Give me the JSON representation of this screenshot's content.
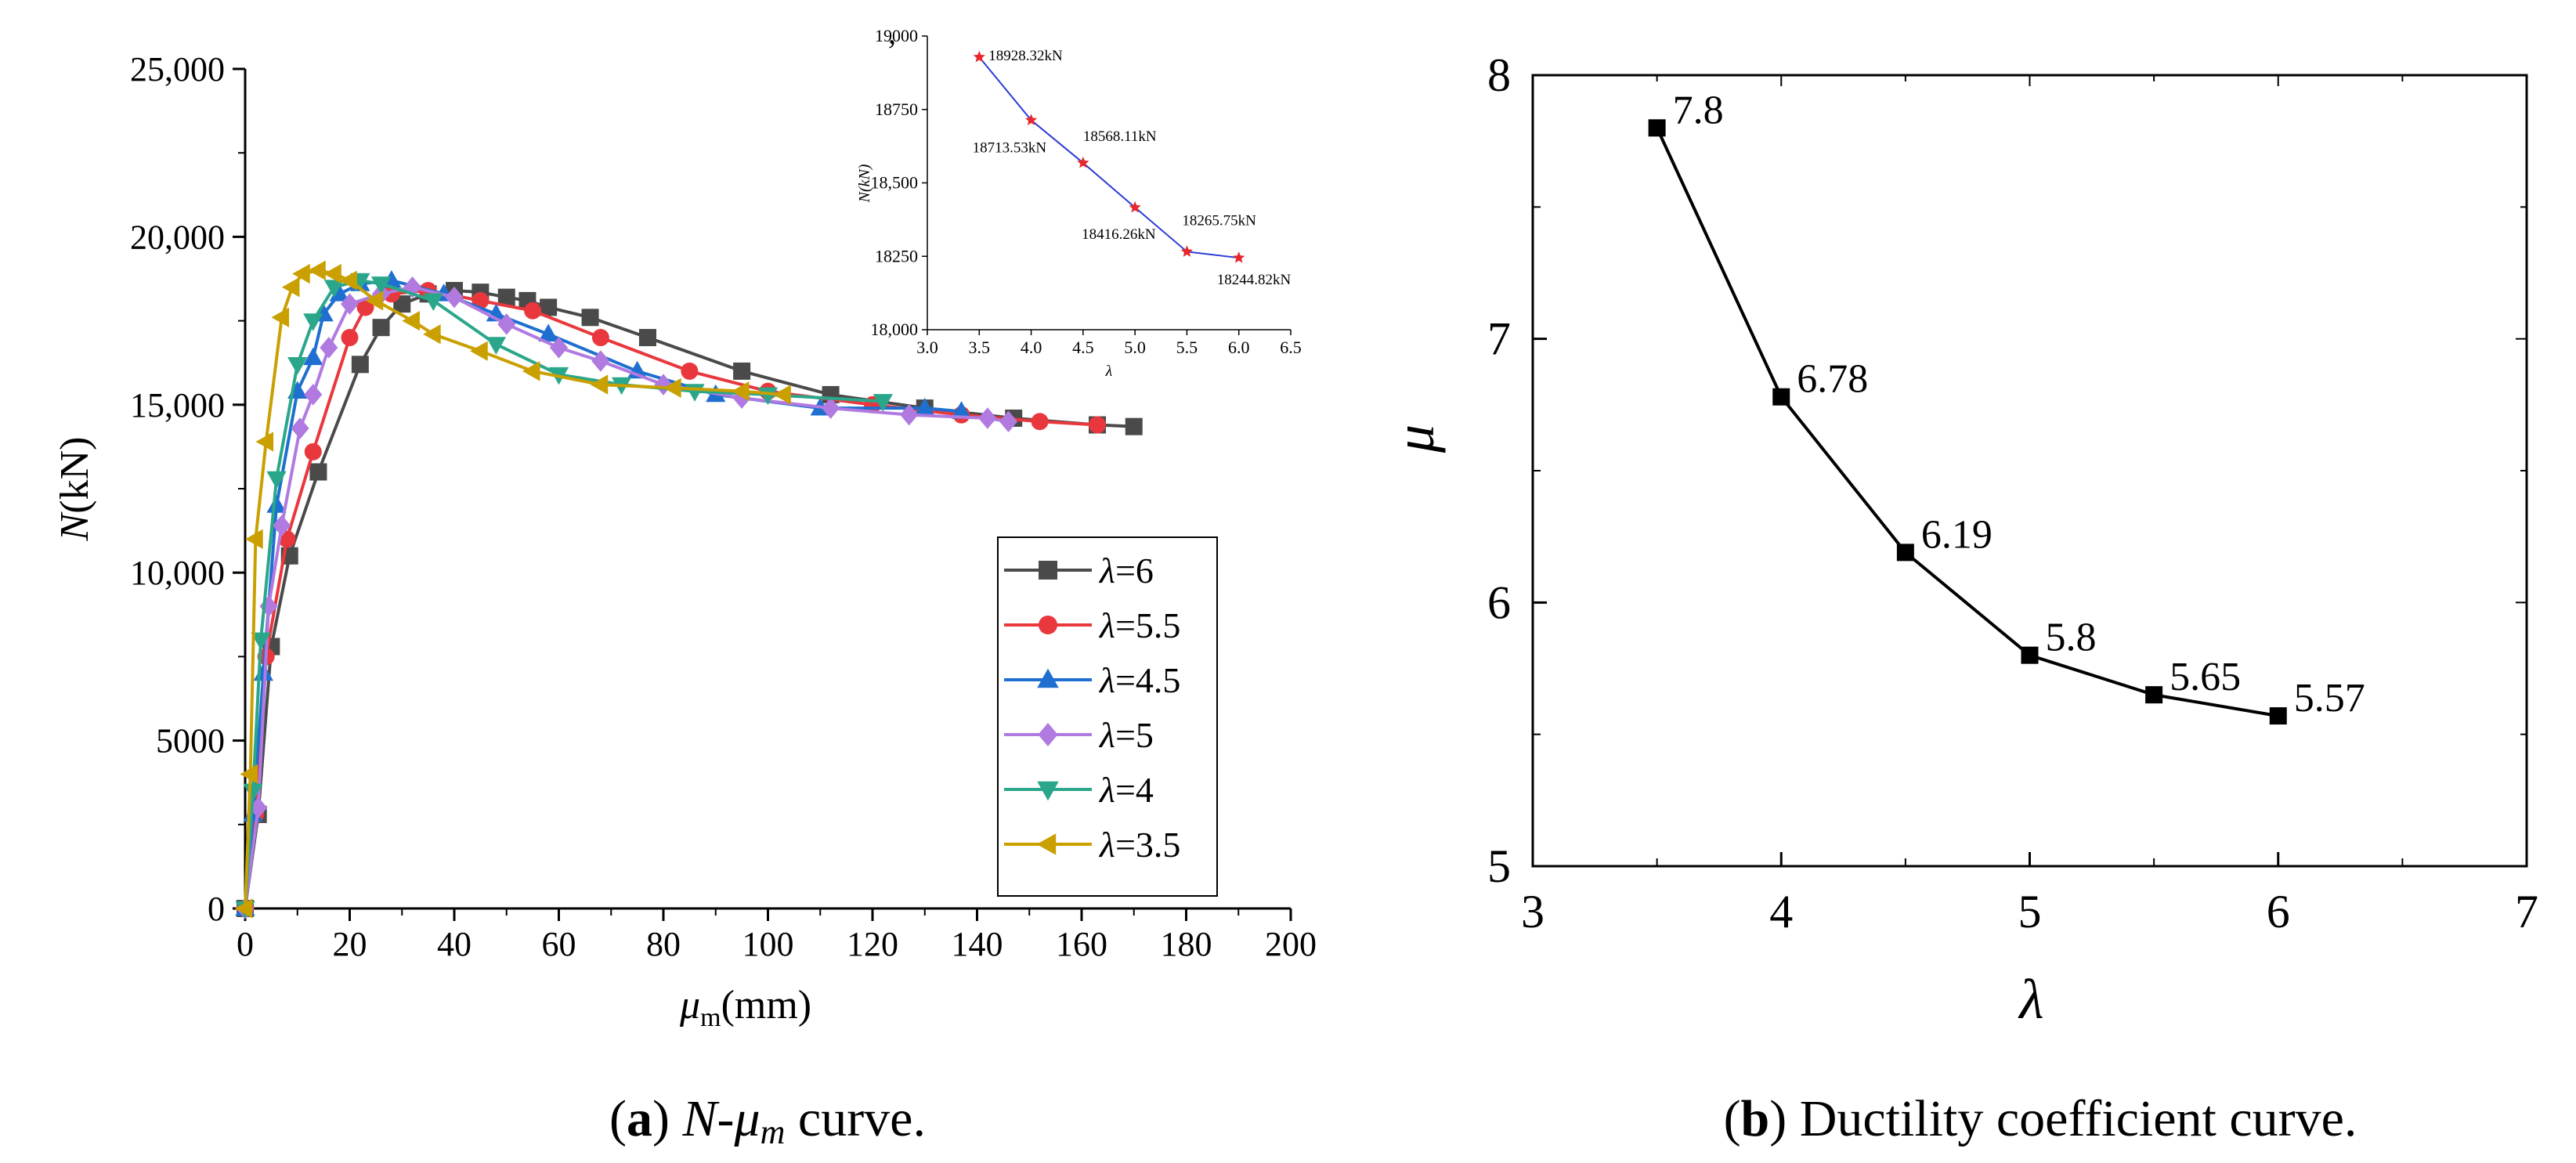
{
  "chart_data": [
    {
      "type": "line",
      "panel": "a",
      "title": "",
      "xlabel": "μm(mm)",
      "xlabel_main": "μ",
      "xlabel_sub": "m",
      "xlabel_unit": "(mm)",
      "ylabel": "N(kN)",
      "ylabel_main": "N",
      "ylabel_unit": "(kN)",
      "xlim": [
        0,
        200
      ],
      "ylim": [
        0,
        25000
      ],
      "xticks": [
        0,
        20,
        40,
        60,
        80,
        100,
        120,
        140,
        160,
        180,
        200
      ],
      "xtick_labels": [
        "0",
        "20",
        "40",
        "60",
        "80",
        "100",
        "120",
        "140",
        "160",
        "180",
        "200"
      ],
      "yticks": [
        0,
        5000,
        10000,
        15000,
        20000,
        25000
      ],
      "ytick_labels": [
        "0",
        "5000",
        "10,000",
        "15,000",
        "20,000",
        "25,000"
      ],
      "legend_position": "lower-right",
      "series": [
        {
          "name": "λ=6",
          "name_symbol": "λ",
          "name_value": "=6",
          "color": "#4a4a4a",
          "marker": "square",
          "x": [
            0,
            2.5,
            5,
            8.5,
            14,
            22,
            26,
            30,
            35,
            40,
            45,
            50,
            54,
            58,
            66,
            77,
            95,
            112,
            130,
            147,
            163,
            170
          ],
          "y": [
            0,
            2800,
            7800,
            10500,
            13000,
            16200,
            17300,
            18000,
            18300,
            18400,
            18350,
            18200,
            18100,
            17900,
            17600,
            17000,
            16000,
            15300,
            14900,
            14600,
            14400,
            14350
          ]
        },
        {
          "name": "λ=5.5",
          "name_symbol": "λ",
          "name_value": "=5.5",
          "color": "#e8383d",
          "marker": "circle",
          "x": [
            0,
            2,
            4,
            8,
            13,
            20,
            23,
            28,
            35,
            45,
            55,
            68,
            85,
            100,
            120,
            137,
            152,
            163
          ],
          "y": [
            0,
            2800,
            7500,
            11000,
            13600,
            17000,
            17900,
            18300,
            18400,
            18100,
            17800,
            17000,
            16000,
            15400,
            15000,
            14700,
            14500,
            14400
          ]
        },
        {
          "name": "λ=4.5",
          "name_symbol": "λ",
          "name_value": "=4.5",
          "color": "#1f6fd0",
          "marker": "triangle-up",
          "x": [
            0,
            1.5,
            3.5,
            6,
            10,
            13,
            15,
            18,
            22,
            28,
            38,
            48,
            58,
            75,
            90,
            110,
            130,
            137
          ],
          "y": [
            0,
            2800,
            7000,
            12000,
            15400,
            16400,
            17700,
            18300,
            18600,
            18700,
            18300,
            17700,
            17100,
            16000,
            15300,
            14900,
            14900,
            14800
          ]
        },
        {
          "name": "λ=5",
          "name_symbol": "λ",
          "name_value": "=5",
          "color": "#b07ae0",
          "marker": "diamond",
          "x": [
            0,
            2.5,
            4.5,
            7,
            10.5,
            13,
            16,
            20,
            26,
            32,
            40,
            50,
            60,
            68,
            80,
            95,
            112,
            127,
            142,
            146
          ],
          "y": [
            0,
            3000,
            9000,
            11400,
            14300,
            15300,
            16700,
            18000,
            18300,
            18500,
            18200,
            17400,
            16700,
            16300,
            15600,
            15200,
            14900,
            14700,
            14600,
            14500
          ]
        },
        {
          "name": "λ=4",
          "name_symbol": "λ",
          "name_value": "=4",
          "color": "#2aa78a",
          "marker": "triangle-down",
          "x": [
            0,
            1.5,
            3,
            6,
            10,
            13,
            17,
            22,
            26,
            36,
            48,
            60,
            72,
            86,
            100,
            122
          ],
          "y": [
            0,
            3500,
            8000,
            12800,
            16200,
            17500,
            18500,
            18700,
            18600,
            18100,
            16800,
            15900,
            15600,
            15400,
            15300,
            15100
          ]
        },
        {
          "name": "λ=3.5",
          "name_symbol": "λ",
          "name_value": "=3.5",
          "color": "#c9a000",
          "marker": "triangle-left",
          "x": [
            0,
            1,
            2,
            4,
            7,
            9,
            11,
            14,
            17,
            20,
            25,
            32,
            36,
            45,
            55,
            68,
            82,
            95,
            103
          ],
          "y": [
            0,
            4000,
            11000,
            13900,
            17600,
            18500,
            18900,
            19000,
            18900,
            18700,
            18100,
            17500,
            17100,
            16600,
            16000,
            15600,
            15500,
            15400,
            15300
          ]
        }
      ],
      "inset": {
        "xlabel": "λ",
        "ylabel": "N(kN)",
        "stray_mark": "’",
        "xlim": [
          3.0,
          6.5
        ],
        "ylim": [
          18000,
          19000
        ],
        "xticks": [
          3.0,
          3.5,
          4.0,
          4.5,
          5.0,
          5.5,
          6.0,
          6.5
        ],
        "xtick_labels": [
          "3.0",
          "3.5",
          "4.0",
          "4.5",
          "5.0",
          "5.5",
          "6.0",
          "6.5"
        ],
        "yticks": [
          18000,
          18250,
          18500,
          18750,
          19000
        ],
        "ytick_labels": [
          "18,000",
          "18250",
          "18,500",
          "18750",
          "19000"
        ],
        "line_color": "#2b3bd6",
        "marker_color": "#e8262b",
        "x": [
          3.5,
          4.0,
          4.5,
          5.0,
          5.5,
          6.0
        ],
        "y": [
          18928.32,
          18713.53,
          18568.11,
          18416.26,
          18265.75,
          18244.82
        ],
        "labels": [
          "18928.32kN",
          "18713.53kN",
          "18568.11kN",
          "18416.26kN",
          "18265.75kN",
          "18244.82kN"
        ]
      }
    },
    {
      "type": "line",
      "panel": "b",
      "title": "",
      "xlabel": "λ",
      "ylabel": "μ",
      "xlim": [
        3,
        7
      ],
      "ylim": [
        5,
        8
      ],
      "xticks": [
        3,
        4,
        5,
        6,
        7
      ],
      "xtick_labels": [
        "3",
        "4",
        "5",
        "6",
        "7"
      ],
      "yticks": [
        5,
        6,
        7,
        8
      ],
      "ytick_labels": [
        "5",
        "6",
        "7",
        "8"
      ],
      "color": "#000000",
      "marker": "square",
      "x": [
        3.5,
        4.0,
        4.5,
        5.0,
        5.5,
        6.0
      ],
      "y": [
        7.8,
        6.78,
        6.19,
        5.8,
        5.65,
        5.57
      ],
      "labels": [
        "7.8",
        "6.78",
        "6.19",
        "5.8",
        "5.65",
        "5.57"
      ]
    }
  ],
  "captions": {
    "a": {
      "letter": "a",
      "text_pre": "(",
      "text_mid": ") ",
      "symbol_n": "N",
      "dash": "-",
      "symbol_mu": "μ",
      "sub": "m",
      "suffix": " curve."
    },
    "b": {
      "letter": "b",
      "text_pre": "(",
      "text_mid": ") ",
      "suffix": "Ductility coefficient curve."
    }
  }
}
